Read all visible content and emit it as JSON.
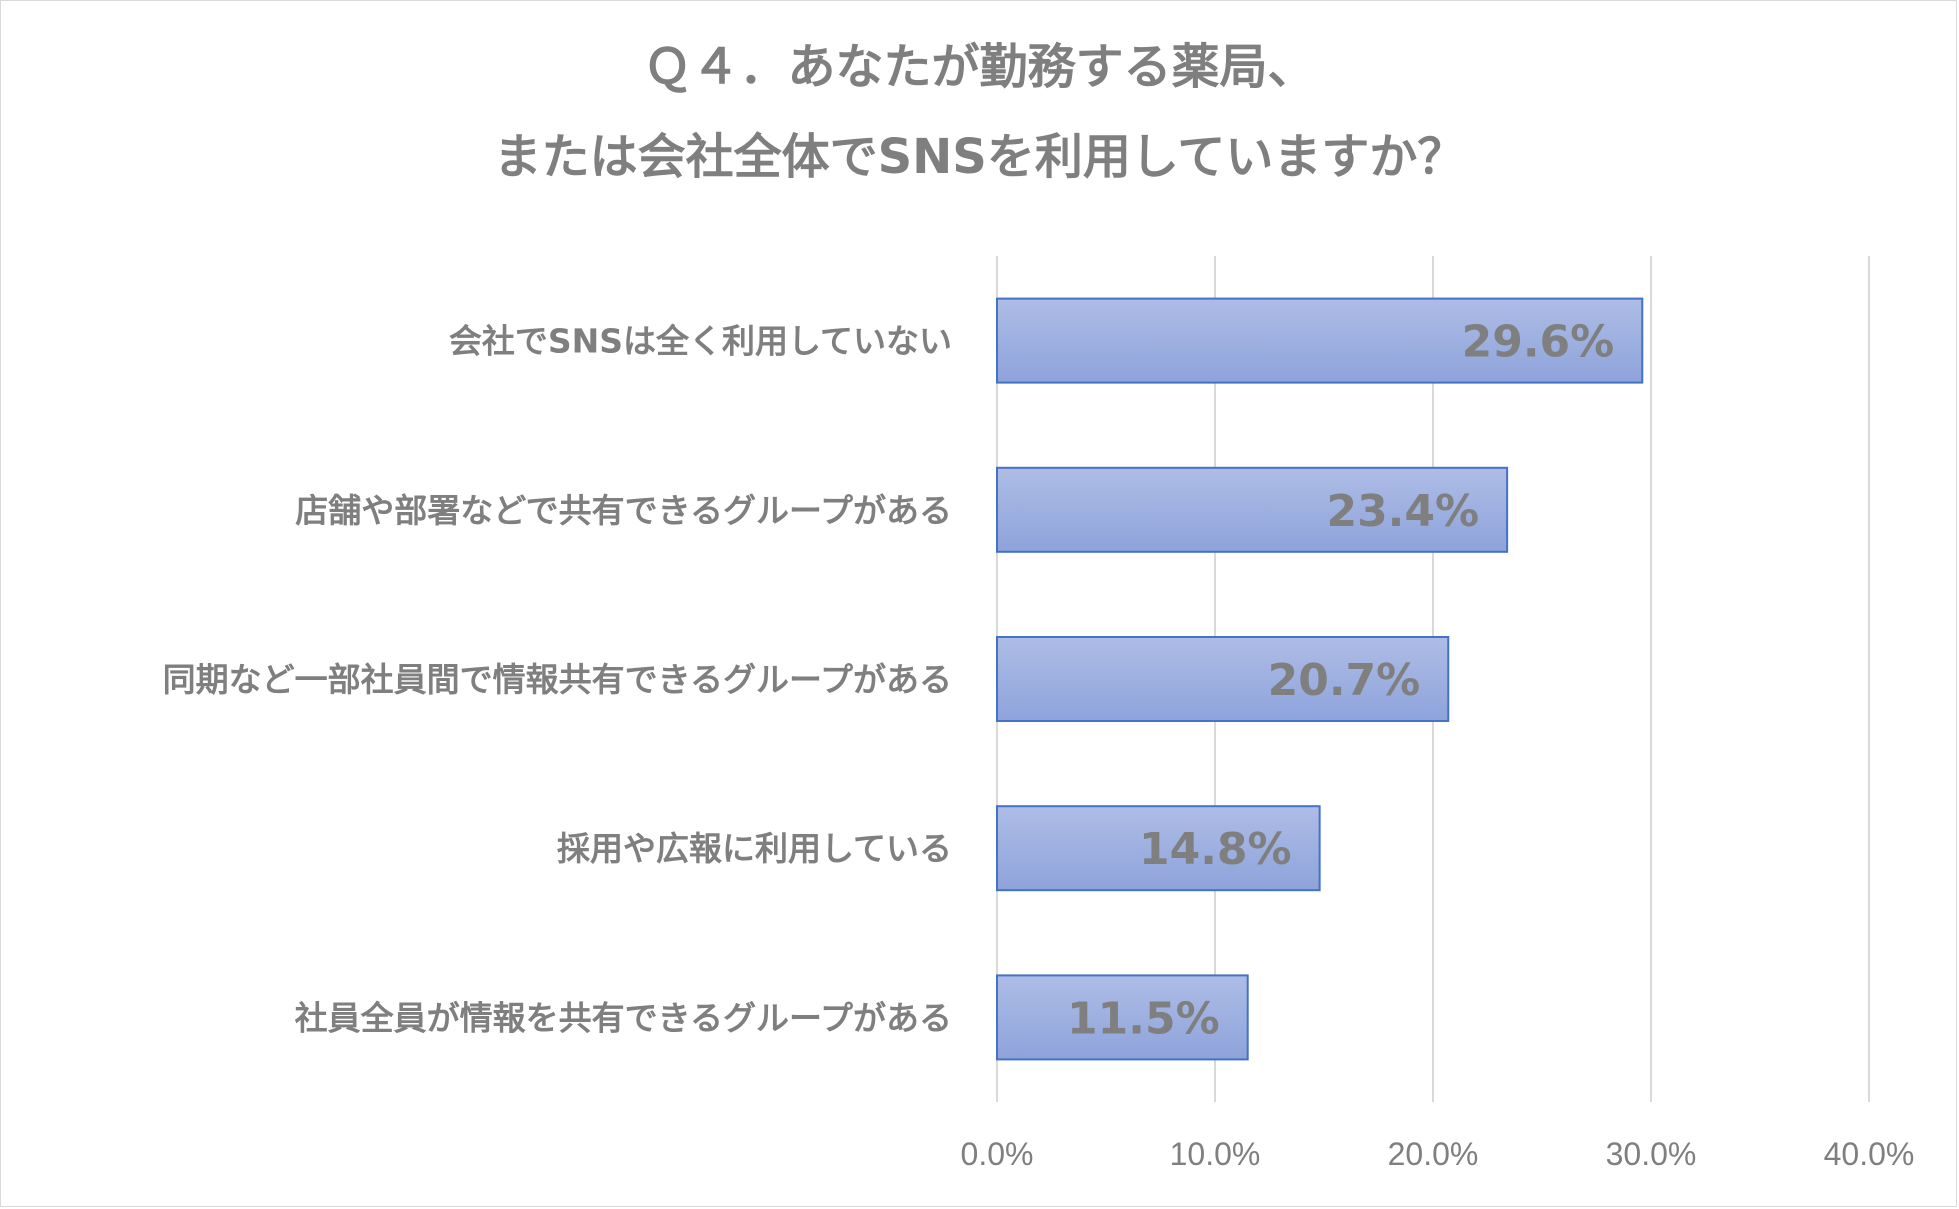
{
  "chart_data": {
    "type": "bar",
    "orientation": "horizontal",
    "title": [
      "Ｑ４．あなたが勤務する薬局、",
      "または会社全体でSNSを利用していますか？"
    ],
    "categories": [
      "会社でSNSは全く利用していない",
      "店舗や部署などで共有できるグループがある",
      "同期など一部社員間で情報共有できるグループがある",
      "採用や広報に利用している",
      "社員全員が情報を共有できるグループがある"
    ],
    "values": [
      29.6,
      23.4,
      20.7,
      14.8,
      11.5
    ],
    "value_labels": [
      "29.6%",
      "23.4%",
      "20.7%",
      "14.8%",
      "11.5%"
    ],
    "xlim": [
      0,
      40
    ],
    "ticks": [
      0,
      10,
      20,
      30,
      40
    ],
    "tick_labels": [
      "0.0%",
      "10.0%",
      "20.0%",
      "30.0%",
      "40.0%"
    ],
    "grid": true,
    "legend": "none",
    "bar_color": "#92a8de",
    "bar_border": "#4472c4"
  }
}
